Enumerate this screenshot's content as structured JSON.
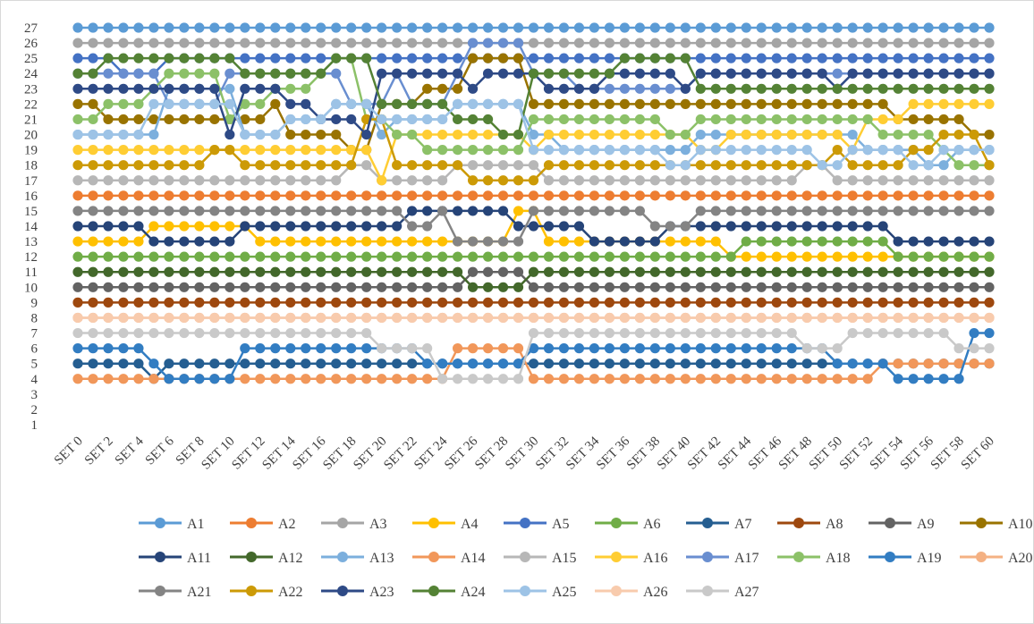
{
  "chart_data": {
    "type": "line",
    "title": "",
    "xlabel": "",
    "ylabel": "",
    "ylim": [
      1,
      27
    ],
    "grid": false,
    "legend_position": "bottom",
    "x": [
      "SET 0",
      "SET 1",
      "SET 2",
      "SET 3",
      "SET 4",
      "SET 5",
      "SET 6",
      "SET 7",
      "SET 8",
      "SET 9",
      "SET 10",
      "SET 11",
      "SET 12",
      "SET 13",
      "SET 14",
      "SET 15",
      "SET 16",
      "SET 17",
      "SET 18",
      "SET 19",
      "SET 20",
      "SET 21",
      "SET 22",
      "SET 23",
      "SET 24",
      "SET 25",
      "SET 26",
      "SET 27",
      "SET 28",
      "SET 29",
      "SET 30",
      "SET 31",
      "SET 32",
      "SET 33",
      "SET 34",
      "SET 35",
      "SET 36",
      "SET 37",
      "SET 38",
      "SET 39",
      "SET 40",
      "SET 41",
      "SET 42",
      "SET 43",
      "SET 44",
      "SET 45",
      "SET 46",
      "SET 47",
      "SET 48",
      "SET 49",
      "SET 50",
      "SET 51",
      "SET 52",
      "SET 53",
      "SET 54",
      "SET 55",
      "SET 56",
      "SET 57",
      "SET 58",
      "SET 59",
      "SET 60"
    ],
    "x_tick_labels": [
      "SET 0",
      "SET 2",
      "SET 4",
      "SET 6",
      "SET 8",
      "SET 10",
      "SET 12",
      "SET 14",
      "SET 16",
      "SET 18",
      "SET 20",
      "SET 22",
      "SET 24",
      "SET 26",
      "SET 28",
      "SET 30",
      "SET 32",
      "SET 34",
      "SET 36",
      "SET 38",
      "SET 40",
      "SET 42",
      "SET 44",
      "SET 46",
      "SET 48",
      "SET 50",
      "SET 52",
      "SET 54",
      "SET 56",
      "SET 58",
      "SET 60"
    ],
    "y_ticks": [
      1,
      2,
      3,
      4,
      5,
      6,
      7,
      8,
      9,
      10,
      11,
      12,
      13,
      14,
      15,
      16,
      17,
      18,
      19,
      20,
      21,
      22,
      23,
      24,
      25,
      26,
      27
    ],
    "series": [
      {
        "name": "A1",
        "color": "#5b9bd5",
        "base": 27,
        "changes": []
      },
      {
        "name": "A2",
        "color": "#ed7d31",
        "base": 16,
        "changes": []
      },
      {
        "name": "A3",
        "color": "#a5a5a5",
        "base": 26,
        "changes": []
      },
      {
        "name": "A4",
        "color": "#ffc000",
        "base": 13,
        "changes": [
          [
            5,
            11,
            14
          ],
          [
            29,
            30,
            15
          ],
          [
            43,
            50,
            12
          ],
          [
            51,
            60,
            12
          ]
        ]
      },
      {
        "name": "A5",
        "color": "#4472c4",
        "base": 25,
        "changes": [
          [
            3,
            5,
            24
          ],
          [
            11,
            16,
            25
          ],
          [
            21,
            24,
            25
          ]
        ]
      },
      {
        "name": "A6",
        "color": "#70ad47",
        "base": 12,
        "changes": [
          [
            44,
            50,
            13
          ],
          [
            51,
            53,
            13
          ]
        ]
      },
      {
        "name": "A7",
        "color": "#255e91",
        "base": 5,
        "changes": [
          [
            5,
            5,
            4
          ],
          [
            6,
            10,
            5
          ],
          [
            34,
            37,
            5
          ]
        ]
      },
      {
        "name": "A8",
        "color": "#9e480e",
        "base": 9,
        "changes": []
      },
      {
        "name": "A9",
        "color": "#636363",
        "base": 10,
        "changes": [
          [
            26,
            29,
            11
          ]
        ]
      },
      {
        "name": "A10",
        "color": "#997300",
        "base": 22,
        "changes": [
          [
            2,
            5,
            21
          ],
          [
            6,
            10,
            21
          ],
          [
            11,
            12,
            21
          ],
          [
            14,
            17,
            20
          ],
          [
            18,
            19,
            19
          ],
          [
            23,
            25,
            23
          ],
          [
            26,
            29,
            25
          ],
          [
            54,
            58,
            21
          ],
          [
            59,
            60,
            20
          ]
        ]
      },
      {
        "name": "A11",
        "color": "#264478",
        "base": 14,
        "changes": [
          [
            5,
            10,
            13
          ],
          [
            22,
            28,
            15
          ],
          [
            31,
            32,
            14
          ],
          [
            34,
            38,
            13
          ],
          [
            54,
            60,
            13
          ]
        ]
      },
      {
        "name": "A12",
        "color": "#43682b",
        "base": 11,
        "changes": [
          [
            26,
            29,
            10
          ]
        ]
      },
      {
        "name": "A13",
        "color": "#7cafdd",
        "base": 20,
        "changes": [
          [
            6,
            10,
            23
          ],
          [
            11,
            13,
            20
          ],
          [
            14,
            16,
            21
          ],
          [
            17,
            19,
            22
          ],
          [
            21,
            24,
            21
          ],
          [
            25,
            29,
            22
          ],
          [
            32,
            40,
            19
          ],
          [
            52,
            55,
            19
          ],
          [
            56,
            57,
            18
          ],
          [
            58,
            60,
            19
          ]
        ]
      },
      {
        "name": "A14",
        "color": "#f1975a",
        "base": 4,
        "changes": [
          [
            25,
            29,
            6
          ],
          [
            53,
            60,
            5
          ]
        ]
      },
      {
        "name": "A15",
        "color": "#b7b7b7",
        "base": 17,
        "changes": [
          [
            18,
            19,
            18
          ],
          [
            25,
            30,
            18
          ],
          [
            48,
            49,
            18
          ]
        ]
      },
      {
        "name": "A16",
        "color": "#ffcd33",
        "base": 19,
        "changes": [
          [
            20,
            20,
            17
          ],
          [
            21,
            29,
            20
          ],
          [
            31,
            40,
            20
          ],
          [
            41,
            42,
            19
          ],
          [
            43,
            50,
            20
          ],
          [
            52,
            54,
            21
          ],
          [
            55,
            60,
            22
          ]
        ]
      },
      {
        "name": "A17",
        "color": "#698ed0",
        "base": 24,
        "changes": [
          [
            6,
            9,
            22
          ],
          [
            18,
            20,
            22
          ],
          [
            22,
            24,
            22
          ],
          [
            26,
            29,
            26
          ],
          [
            33,
            35,
            23
          ],
          [
            36,
            40,
            23
          ]
        ]
      },
      {
        "name": "A18",
        "color": "#8cc168",
        "base": 21,
        "changes": [
          [
            2,
            4,
            22
          ],
          [
            5,
            5,
            23
          ],
          [
            6,
            9,
            24
          ],
          [
            10,
            10,
            21
          ],
          [
            11,
            12,
            22
          ],
          [
            13,
            15,
            23
          ],
          [
            16,
            16,
            24
          ],
          [
            17,
            18,
            25
          ],
          [
            19,
            20,
            21
          ],
          [
            21,
            22,
            20
          ],
          [
            23,
            29,
            19
          ],
          [
            31,
            38,
            21
          ],
          [
            39,
            40,
            20
          ],
          [
            41,
            52,
            21
          ],
          [
            53,
            56,
            20
          ],
          [
            57,
            57,
            19
          ],
          [
            58,
            60,
            18
          ]
        ]
      },
      {
        "name": "A19",
        "color": "#327dc2",
        "base": 6,
        "changes": [
          [
            5,
            5,
            5
          ],
          [
            6,
            10,
            4
          ],
          [
            23,
            24,
            5
          ],
          [
            25,
            29,
            5
          ],
          [
            31,
            36,
            6
          ],
          [
            37,
            39,
            6
          ],
          [
            40,
            49,
            6
          ],
          [
            50,
            53,
            5
          ],
          [
            54,
            58,
            4
          ],
          [
            59,
            60,
            7
          ]
        ]
      },
      {
        "name": "A20",
        "color": "#f4b183",
        "base": 8,
        "changes": []
      },
      {
        "name": "A21",
        "color": "#848484",
        "base": 15,
        "changes": [
          [
            22,
            23,
            14
          ],
          [
            25,
            29,
            13
          ],
          [
            38,
            40,
            14
          ]
        ]
      },
      {
        "name": "A22",
        "color": "#cc9a06",
        "base": 18,
        "changes": [
          [
            9,
            10,
            19
          ],
          [
            19,
            20,
            21
          ],
          [
            26,
            30,
            17
          ],
          [
            50,
            50,
            19
          ],
          [
            55,
            56,
            19
          ],
          [
            57,
            59,
            20
          ]
        ]
      },
      {
        "name": "A23",
        "color": "#2e4a86",
        "base": 23,
        "changes": [
          [
            10,
            10,
            20
          ],
          [
            11,
            13,
            23
          ],
          [
            14,
            15,
            22
          ],
          [
            16,
            18,
            21
          ],
          [
            19,
            19,
            20
          ],
          [
            20,
            25,
            24
          ],
          [
            26,
            26,
            23
          ],
          [
            27,
            30,
            24
          ],
          [
            35,
            37,
            24
          ],
          [
            38,
            39,
            24
          ],
          [
            40,
            40,
            23
          ],
          [
            41,
            49,
            24
          ],
          [
            50,
            50,
            23
          ],
          [
            51,
            60,
            24
          ]
        ]
      },
      {
        "name": "A24",
        "color": "#548235",
        "base": 24,
        "changes": [
          [
            2,
            10,
            25
          ],
          [
            11,
            16,
            24
          ],
          [
            17,
            19,
            25
          ],
          [
            20,
            24,
            22
          ],
          [
            25,
            27,
            21
          ],
          [
            28,
            29,
            20
          ],
          [
            30,
            35,
            24
          ],
          [
            36,
            40,
            25
          ],
          [
            41,
            50,
            23
          ],
          [
            51,
            60,
            23
          ]
        ]
      },
      {
        "name": "A25",
        "color": "#9dc3e6",
        "base": 20,
        "changes": [
          [
            0,
            4,
            20
          ],
          [
            5,
            10,
            22
          ],
          [
            11,
            13,
            20
          ],
          [
            14,
            16,
            21
          ],
          [
            17,
            19,
            22
          ],
          [
            20,
            24,
            21
          ],
          [
            25,
            29,
            22
          ],
          [
            30,
            38,
            19
          ],
          [
            39,
            40,
            18
          ],
          [
            41,
            46,
            19
          ],
          [
            47,
            48,
            19
          ],
          [
            49,
            50,
            18
          ],
          [
            51,
            54,
            19
          ],
          [
            55,
            56,
            18
          ],
          [
            57,
            60,
            19
          ]
        ]
      },
      {
        "name": "A26",
        "color": "#f8cbad",
        "base": 8,
        "changes": []
      },
      {
        "name": "A27",
        "color": "#c9c9c9",
        "base": 7,
        "changes": [
          [
            20,
            21,
            6
          ],
          [
            22,
            23,
            6
          ],
          [
            24,
            29,
            4
          ],
          [
            48,
            50,
            6
          ],
          [
            58,
            60,
            6
          ]
        ]
      }
    ]
  }
}
